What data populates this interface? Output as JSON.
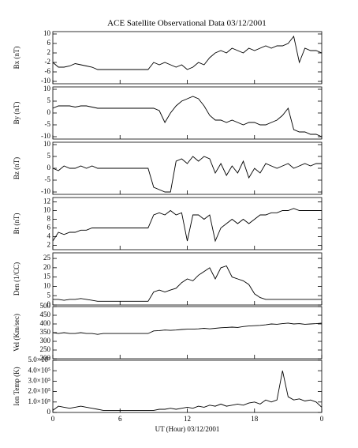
{
  "chart_data": [
    {
      "type": "line",
      "title": "ACE Satellite Observational Data   03/12/2001",
      "ylabel": "Bx (nT)",
      "color": "#000000",
      "x": [
        0,
        0.5,
        1,
        1.5,
        2,
        2.5,
        3,
        3.5,
        4,
        4.5,
        5,
        5.5,
        6,
        6.5,
        7,
        7.5,
        8,
        8.5,
        9,
        9.5,
        10,
        10.5,
        11,
        11.5,
        12,
        12.5,
        13,
        13.5,
        14,
        14.5,
        15,
        15.5,
        16,
        16.5,
        17,
        17.5,
        18,
        18.5,
        19,
        19.5,
        20,
        20.5,
        21,
        21.5,
        22,
        22.5,
        23,
        23.5,
        24
      ],
      "values": [
        -2,
        -4,
        -4,
        -3.5,
        -2.5,
        -3,
        -3.5,
        -4,
        -5,
        -5,
        -5,
        -5,
        -5,
        -5,
        -5,
        -5,
        -5,
        -5,
        -2,
        -3,
        -2,
        -3,
        -4,
        -3,
        -5,
        -4,
        -2,
        -3,
        0,
        2,
        3,
        2,
        4,
        3,
        2,
        4,
        3,
        4,
        5,
        4,
        5,
        5,
        6,
        9,
        -2,
        4,
        3,
        3,
        2
      ],
      "xlim": [
        0,
        24
      ],
      "ylim": [
        -11,
        11
      ],
      "yticks": [
        -10,
        -6,
        -2,
        2,
        6,
        10
      ]
    },
    {
      "type": "line",
      "ylabel": "By (nT)",
      "color": "#000000",
      "x": [
        0,
        0.5,
        1,
        1.5,
        2,
        2.5,
        3,
        3.5,
        4,
        4.5,
        5,
        5.5,
        6,
        6.5,
        7,
        7.5,
        8,
        8.5,
        9,
        9.5,
        10,
        10.5,
        11,
        11.5,
        12,
        12.5,
        13,
        13.5,
        14,
        14.5,
        15,
        15.5,
        16,
        16.5,
        17,
        17.5,
        18,
        18.5,
        19,
        19.5,
        20,
        20.5,
        21,
        21.5,
        22,
        22.5,
        23,
        23.5,
        24
      ],
      "values": [
        2,
        3,
        3,
        3,
        2.5,
        3,
        3,
        2.5,
        2,
        2,
        2,
        2,
        2,
        2,
        2,
        2,
        2,
        2,
        2,
        1,
        -4,
        0,
        3,
        5,
        6,
        7,
        6,
        3,
        -1,
        -3,
        -3,
        -4,
        -3,
        -4,
        -5,
        -4,
        -4,
        -5,
        -5,
        -4,
        -3,
        -1,
        2,
        -7,
        -8,
        -8,
        -9,
        -9,
        -10
      ],
      "xlim": [
        0,
        24
      ],
      "ylim": [
        -11,
        11
      ],
      "yticks": [
        -10,
        -5,
        0,
        5,
        10
      ]
    },
    {
      "type": "line",
      "ylabel": "Bz (nT)",
      "color": "#000000",
      "x": [
        0,
        0.5,
        1,
        1.5,
        2,
        2.5,
        3,
        3.5,
        4,
        4.5,
        5,
        5.5,
        6,
        6.5,
        7,
        7.5,
        8,
        8.5,
        9,
        9.5,
        10,
        10.5,
        11,
        11.5,
        12,
        12.5,
        13,
        13.5,
        14,
        14.5,
        15,
        15.5,
        16,
        16.5,
        17,
        17.5,
        18,
        18.5,
        19,
        19.5,
        20,
        20.5,
        21,
        21.5,
        22,
        22.5,
        23,
        23.5,
        24
      ],
      "values": [
        0,
        -1,
        1,
        0,
        0,
        1,
        0,
        1,
        0,
        0,
        0,
        0,
        0,
        0,
        0,
        0,
        0,
        0,
        -8,
        -9,
        -10,
        -10,
        3,
        4,
        2,
        5,
        3,
        5,
        4,
        -2,
        2,
        -3,
        1,
        -2,
        3,
        -4,
        0,
        -2,
        2,
        1,
        0,
        1,
        2,
        0,
        1,
        2,
        1,
        2,
        2
      ],
      "xlim": [
        0,
        24
      ],
      "ylim": [
        -11,
        11
      ],
      "yticks": [
        -10,
        -5,
        0,
        5,
        10
      ]
    },
    {
      "type": "line",
      "ylabel": "Bt (nT)",
      "color": "#000000",
      "x": [
        0,
        0.5,
        1,
        1.5,
        2,
        2.5,
        3,
        3.5,
        4,
        4.5,
        5,
        5.5,
        6,
        6.5,
        7,
        7.5,
        8,
        8.5,
        9,
        9.5,
        10,
        10.5,
        11,
        11.5,
        12,
        12.5,
        13,
        13.5,
        14,
        14.5,
        15,
        15.5,
        16,
        16.5,
        17,
        17.5,
        18,
        18.5,
        19,
        19.5,
        20,
        20.5,
        21,
        21.5,
        22,
        22.5,
        23,
        23.5,
        24
      ],
      "values": [
        3,
        5,
        4.5,
        5,
        5,
        5.5,
        5.5,
        6,
        6,
        6,
        6,
        6,
        6,
        6,
        6,
        6,
        6,
        6,
        9,
        9.5,
        9,
        10,
        9,
        9.5,
        3,
        9,
        9,
        8,
        9,
        3,
        6,
        7,
        8,
        7,
        8,
        7,
        8,
        9,
        9,
        9.5,
        9.5,
        10,
        10,
        10.5,
        10,
        10,
        10,
        10,
        10
      ],
      "xlim": [
        0,
        24
      ],
      "ylim": [
        1,
        13
      ],
      "yticks": [
        2,
        4,
        6,
        8,
        10,
        12
      ]
    },
    {
      "type": "line",
      "ylabel": "Den (1/CC)",
      "color": "#000000",
      "x": [
        0,
        0.5,
        1,
        1.5,
        2,
        2.5,
        3,
        3.5,
        4,
        4.5,
        5,
        5.5,
        6,
        6.5,
        7,
        7.5,
        8,
        8.5,
        9,
        9.5,
        10,
        10.5,
        11,
        11.5,
        12,
        12.5,
        13,
        13.5,
        14,
        14.5,
        15,
        15.5,
        16,
        16.5,
        17,
        17.5,
        18,
        18.5,
        19,
        19.5,
        20,
        20.5,
        21,
        21.5,
        22,
        22.5,
        23,
        23.5,
        24
      ],
      "values": [
        3,
        3,
        2.5,
        3,
        3,
        3.5,
        3,
        2.5,
        2,
        2,
        2,
        2,
        2,
        2,
        2,
        2,
        2,
        2,
        7,
        8,
        7,
        8,
        9,
        12,
        14,
        13,
        16,
        18,
        20,
        14,
        20,
        21,
        15,
        14,
        13,
        11,
        6,
        4,
        3,
        3,
        3,
        3,
        3,
        3,
        3,
        3,
        3,
        3,
        3
      ],
      "xlim": [
        0,
        24
      ],
      "ylim": [
        0,
        28
      ],
      "yticks": [
        0,
        5,
        10,
        15,
        20,
        25
      ]
    },
    {
      "type": "line",
      "ylabel": "Vel (Km/sec)",
      "color": "#000000",
      "x": [
        0,
        0.5,
        1,
        1.5,
        2,
        2.5,
        3,
        3.5,
        4,
        4.5,
        5,
        5.5,
        6,
        6.5,
        7,
        7.5,
        8,
        8.5,
        9,
        9.5,
        10,
        10.5,
        11,
        11.5,
        12,
        12.5,
        13,
        13.5,
        14,
        14.5,
        15,
        15.5,
        16,
        16.5,
        17,
        17.5,
        18,
        18.5,
        19,
        19.5,
        20,
        20.5,
        21,
        21.5,
        22,
        22.5,
        23,
        23.5,
        24
      ],
      "values": [
        350,
        345,
        350,
        345,
        345,
        350,
        345,
        345,
        340,
        345,
        345,
        345,
        345,
        345,
        345,
        345,
        345,
        345,
        360,
        362,
        365,
        363,
        365,
        368,
        370,
        370,
        372,
        375,
        372,
        375,
        378,
        380,
        382,
        380,
        385,
        388,
        390,
        392,
        395,
        400,
        398,
        402,
        405,
        400,
        402,
        398,
        400,
        402,
        405
      ],
      "xlim": [
        0,
        24
      ],
      "ylim": [
        200,
        500
      ],
      "yticks": [
        200,
        250,
        300,
        350,
        400,
        450,
        500
      ]
    },
    {
      "type": "line",
      "ylabel": "Ion Temp (K)",
      "xlabel": "UT (Hour)  03/12/2001",
      "color": "#000000",
      "x": [
        0,
        0.5,
        1,
        1.5,
        2,
        2.5,
        3,
        3.5,
        4,
        4.5,
        5,
        5.5,
        6,
        6.5,
        7,
        7.5,
        8,
        8.5,
        9,
        9.5,
        10,
        10.5,
        11,
        11.5,
        12,
        12.5,
        13,
        13.5,
        14,
        14.5,
        15,
        15.5,
        16,
        16.5,
        17,
        17.5,
        18,
        18.5,
        19,
        19.5,
        20,
        20.5,
        21,
        21.5,
        22,
        22.5,
        23,
        23.5,
        24
      ],
      "values": [
        20000,
        60000,
        50000,
        40000,
        50000,
        60000,
        50000,
        40000,
        30000,
        20000,
        20000,
        20000,
        20000,
        20000,
        20000,
        20000,
        20000,
        20000,
        20000,
        30000,
        30000,
        40000,
        30000,
        40000,
        50000,
        40000,
        60000,
        50000,
        70000,
        60000,
        80000,
        60000,
        70000,
        80000,
        70000,
        90000,
        100000,
        80000,
        120000,
        100000,
        120000,
        400000,
        150000,
        120000,
        130000,
        110000,
        120000,
        100000,
        50000
      ],
      "xlim": [
        0,
        24
      ],
      "ylim": [
        0,
        500000
      ],
      "yticks": [
        0,
        {
          "value": 100000,
          "label": "1.0×10⁵"
        },
        {
          "value": 200000,
          "label": "2.0×10⁵"
        },
        {
          "value": 300000,
          "label": "3.0×10⁵"
        },
        {
          "value": 400000,
          "label": "4.0×10⁵"
        },
        {
          "value": 500000,
          "label": "5.0×10⁵"
        }
      ],
      "xticks": [
        0,
        6,
        12,
        18,
        {
          "value": 24,
          "label": "0"
        }
      ]
    }
  ]
}
